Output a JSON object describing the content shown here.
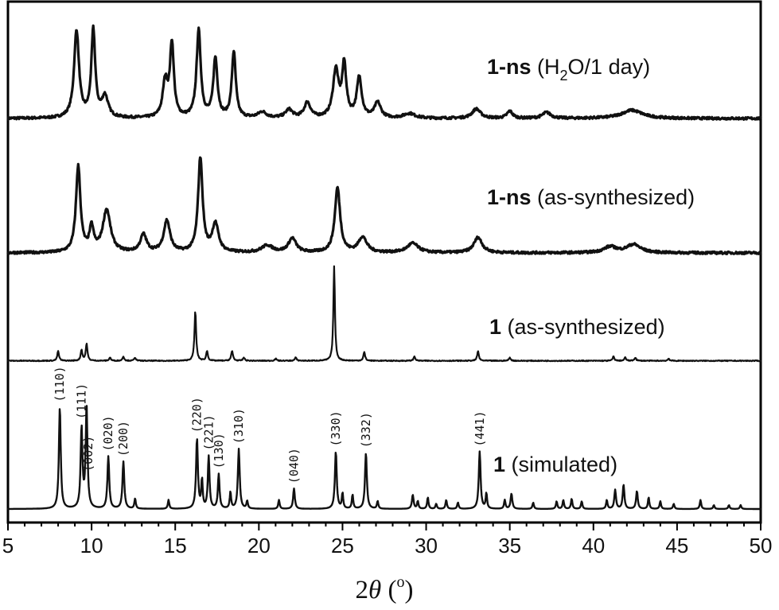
{
  "chart_data": {
    "type": "line",
    "xlabel": "2θ (°)",
    "xlabel_main": "2",
    "xlabel_theta": "θ",
    "xlabel_unit": " (",
    "xlabel_deg": "o",
    "xlabel_close": ")",
    "xlim": [
      5,
      50
    ],
    "xticks": [
      5,
      10,
      15,
      20,
      25,
      30,
      35,
      40,
      45,
      50
    ],
    "yaxis": "none",
    "series": [
      {
        "id": "ns_water",
        "name_bold": "1-ns",
        "name_rest": " (H",
        "name_sub": "2",
        "name_end": "O/1 day)",
        "offset": 3,
        "peaks": [
          [
            9.1,
            0.74,
            0.35
          ],
          [
            10.1,
            0.74,
            0.28
          ],
          [
            10.8,
            0.18,
            0.45
          ],
          [
            14.4,
            0.3,
            0.35
          ],
          [
            14.8,
            0.62,
            0.28
          ],
          [
            16.4,
            0.74,
            0.3
          ],
          [
            17.4,
            0.5,
            0.3
          ],
          [
            18.5,
            0.56,
            0.28
          ],
          [
            20.2,
            0.05,
            0.6
          ],
          [
            21.8,
            0.07,
            0.5
          ],
          [
            22.9,
            0.13,
            0.45
          ],
          [
            24.6,
            0.4,
            0.4
          ],
          [
            25.1,
            0.44,
            0.3
          ],
          [
            26.0,
            0.34,
            0.35
          ],
          [
            27.1,
            0.13,
            0.45
          ],
          [
            29.0,
            0.04,
            0.8
          ],
          [
            33.0,
            0.08,
            0.6
          ],
          [
            35.0,
            0.06,
            0.4
          ],
          [
            37.2,
            0.05,
            0.6
          ],
          [
            42.3,
            0.07,
            1.5
          ]
        ],
        "baseline": 0.02
      },
      {
        "id": "ns_as",
        "name_bold": "1-ns",
        "name_rest": " (as-synthesized)",
        "name_sub": "",
        "name_end": "",
        "offset": 2,
        "peaks": [
          [
            9.2,
            0.73,
            0.32
          ],
          [
            10.0,
            0.2,
            0.3
          ],
          [
            10.9,
            0.36,
            0.55
          ],
          [
            13.1,
            0.15,
            0.45
          ],
          [
            14.5,
            0.27,
            0.45
          ],
          [
            16.5,
            0.8,
            0.32
          ],
          [
            17.4,
            0.24,
            0.45
          ],
          [
            20.5,
            0.06,
            0.8
          ],
          [
            22.0,
            0.12,
            0.55
          ],
          [
            24.7,
            0.55,
            0.38
          ],
          [
            26.2,
            0.13,
            0.6
          ],
          [
            29.2,
            0.08,
            0.8
          ],
          [
            33.1,
            0.13,
            0.6
          ],
          [
            41.0,
            0.05,
            0.9
          ],
          [
            42.4,
            0.07,
            1.0
          ]
        ],
        "baseline": 0.02
      },
      {
        "id": "as",
        "name_bold": "1",
        "name_rest": " (as-synthesized)",
        "name_sub": "",
        "name_end": "",
        "offset": 1,
        "peaks": [
          [
            8.0,
            0.09,
            0.12
          ],
          [
            9.4,
            0.1,
            0.12
          ],
          [
            9.7,
            0.16,
            0.12
          ],
          [
            11.1,
            0.03,
            0.12
          ],
          [
            11.9,
            0.04,
            0.12
          ],
          [
            12.6,
            0.03,
            0.12
          ],
          [
            16.2,
            0.46,
            0.12
          ],
          [
            16.9,
            0.09,
            0.12
          ],
          [
            18.4,
            0.09,
            0.13
          ],
          [
            19.1,
            0.03,
            0.12
          ],
          [
            21.0,
            0.02,
            0.12
          ],
          [
            22.2,
            0.03,
            0.12
          ],
          [
            24.5,
            0.88,
            0.11
          ],
          [
            26.3,
            0.08,
            0.12
          ],
          [
            29.3,
            0.04,
            0.12
          ],
          [
            33.1,
            0.09,
            0.12
          ],
          [
            35.0,
            0.03,
            0.12
          ],
          [
            41.2,
            0.04,
            0.12
          ],
          [
            41.9,
            0.03,
            0.12
          ],
          [
            42.5,
            0.03,
            0.12
          ],
          [
            44.5,
            0.02,
            0.12
          ]
        ],
        "baseline": 0.01
      },
      {
        "id": "sim",
        "name_bold": "1",
        "name_rest": " (simulated)",
        "name_sub": "",
        "name_end": "",
        "offset": 0,
        "peaks": [
          [
            8.1,
            0.8,
            0.13
          ],
          [
            9.4,
            0.63,
            0.13
          ],
          [
            9.7,
            0.8,
            0.13
          ],
          [
            11.0,
            0.41,
            0.13
          ],
          [
            11.9,
            0.37,
            0.13
          ],
          [
            12.6,
            0.08,
            0.1
          ],
          [
            14.6,
            0.07,
            0.1
          ],
          [
            16.3,
            0.55,
            0.13
          ],
          [
            16.6,
            0.22,
            0.1
          ],
          [
            17.0,
            0.41,
            0.12
          ],
          [
            17.6,
            0.27,
            0.12
          ],
          [
            18.3,
            0.13,
            0.1
          ],
          [
            18.8,
            0.47,
            0.13
          ],
          [
            19.3,
            0.06,
            0.1
          ],
          [
            21.2,
            0.07,
            0.1
          ],
          [
            22.1,
            0.16,
            0.12
          ],
          [
            24.6,
            0.45,
            0.13
          ],
          [
            25.0,
            0.12,
            0.1
          ],
          [
            25.6,
            0.11,
            0.1
          ],
          [
            26.4,
            0.44,
            0.13
          ],
          [
            27.1,
            0.06,
            0.1
          ],
          [
            29.2,
            0.11,
            0.12
          ],
          [
            29.5,
            0.06,
            0.1
          ],
          [
            30.1,
            0.09,
            0.1
          ],
          [
            30.6,
            0.04,
            0.1
          ],
          [
            31.2,
            0.07,
            0.1
          ],
          [
            31.9,
            0.05,
            0.1
          ],
          [
            33.2,
            0.45,
            0.13
          ],
          [
            33.6,
            0.12,
            0.1
          ],
          [
            34.7,
            0.07,
            0.1
          ],
          [
            35.1,
            0.12,
            0.12
          ],
          [
            36.4,
            0.05,
            0.1
          ],
          [
            37.8,
            0.06,
            0.1
          ],
          [
            38.2,
            0.07,
            0.1
          ],
          [
            38.7,
            0.08,
            0.1
          ],
          [
            39.3,
            0.06,
            0.1
          ],
          [
            40.8,
            0.07,
            0.1
          ],
          [
            41.3,
            0.15,
            0.12
          ],
          [
            41.8,
            0.19,
            0.12
          ],
          [
            42.6,
            0.14,
            0.12
          ],
          [
            43.3,
            0.09,
            0.1
          ],
          [
            44.0,
            0.06,
            0.1
          ],
          [
            44.8,
            0.04,
            0.1
          ],
          [
            46.4,
            0.07,
            0.1
          ],
          [
            47.2,
            0.03,
            0.1
          ],
          [
            48.1,
            0.03,
            0.1
          ],
          [
            48.8,
            0.03,
            0.1
          ]
        ],
        "baseline": 0.0
      }
    ],
    "annotations": [
      {
        "text": "(110)",
        "x": 8.1
      },
      {
        "text": "(111)",
        "x": 9.4
      },
      {
        "text": "(002)",
        "x": 9.8
      },
      {
        "text": "(020)",
        "x": 11.0
      },
      {
        "text": "(200)",
        "x": 11.9
      },
      {
        "text": "(220)",
        "x": 16.3
      },
      {
        "text": "(221)",
        "x": 17.0
      },
      {
        "text": "(130)",
        "x": 17.6
      },
      {
        "text": "(310)",
        "x": 18.8
      },
      {
        "text": "(040)",
        "x": 22.1
      },
      {
        "text": "(330)",
        "x": 24.6
      },
      {
        "text": "(332)",
        "x": 26.4
      },
      {
        "text": "(441)",
        "x": 33.2
      }
    ]
  }
}
